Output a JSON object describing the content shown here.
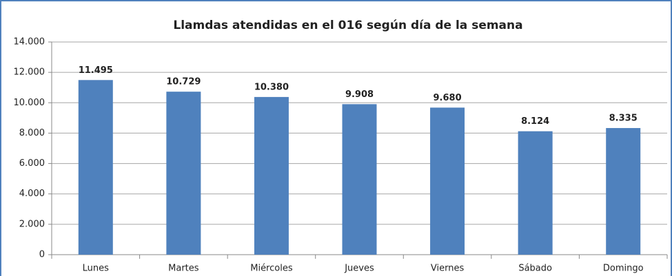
{
  "chart_data": {
    "type": "bar",
    "title": "Llamdas atendidas en el 016 según día de la semana",
    "categories": [
      "Lunes",
      "Martes",
      "Miércoles",
      "Jueves",
      "Viernes",
      "Sábado",
      "Domingo"
    ],
    "values": [
      11495,
      10729,
      10380,
      9908,
      9680,
      8124,
      8335
    ],
    "value_labels": [
      "11.495",
      "10.729",
      "10.380",
      "9.908",
      "9.680",
      "8.124",
      "8.335"
    ],
    "color": "#4f81bd",
    "ylim": [
      0,
      14000
    ],
    "yticks": [
      0,
      {
        "value": 2000,
        "label": "2.000"
      },
      {
        "value": 4000,
        "label": "4.000"
      },
      {
        "value": 6000,
        "label": "6.000"
      },
      {
        "value": 8000,
        "label": "8.000"
      },
      {
        "value": 10000,
        "label": "10.000"
      },
      {
        "value": 12000,
        "label": "12.000"
      },
      {
        "value": 14000,
        "label": "14.000"
      }
    ],
    "grid": true
  }
}
